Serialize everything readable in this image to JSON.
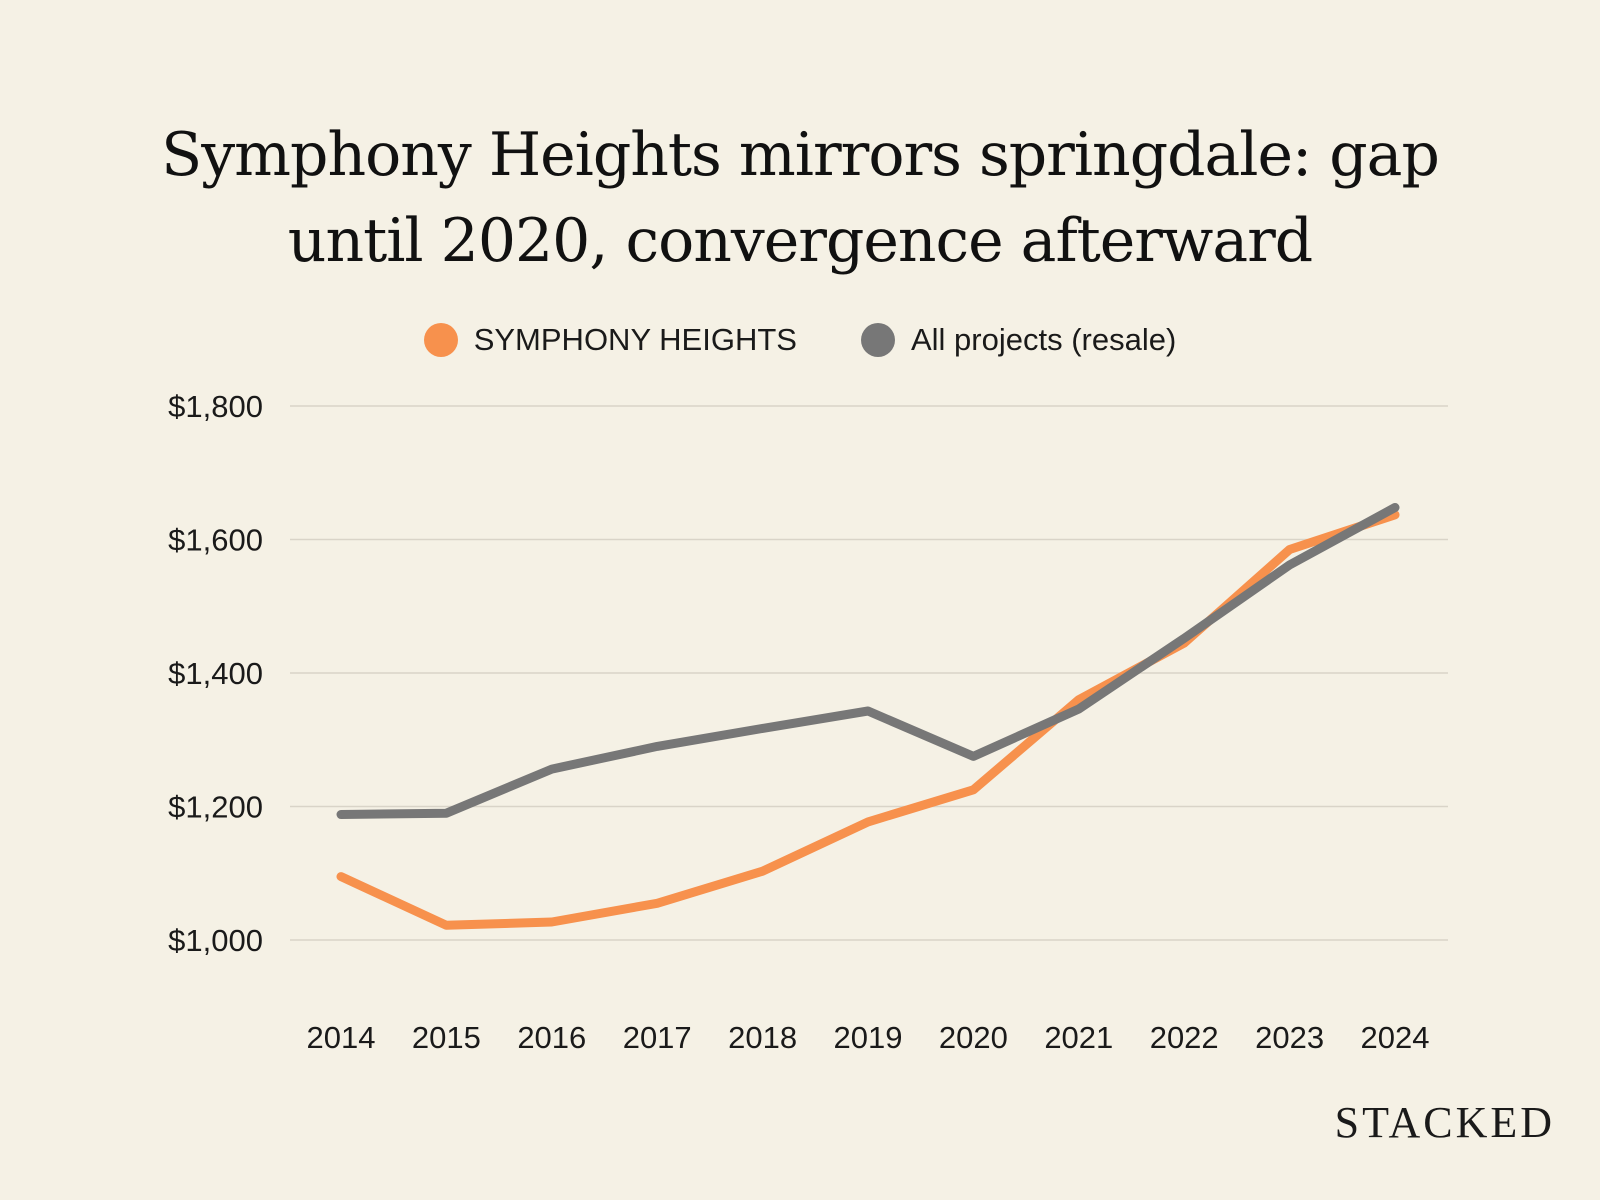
{
  "chart_data": {
    "type": "line",
    "title": "Symphony Heights mirrors springdale: gap until 2020, convergence afterward",
    "xlabel": "",
    "ylabel": "",
    "x": [
      "2014",
      "2015",
      "2016",
      "2017",
      "2018",
      "2019",
      "2020",
      "2021",
      "2022",
      "2023",
      "2024"
    ],
    "ylim": [
      1000,
      1800
    ],
    "yticks": [
      1000,
      1200,
      1400,
      1600,
      1800
    ],
    "ytick_labels": [
      "$1,000",
      "$1,200",
      "$1,400",
      "$1,600",
      "$1,800"
    ],
    "grid": true,
    "legend_position": "top-center",
    "series": [
      {
        "name": "SYMPHONY HEIGHTS",
        "color": "#f7914d",
        "values": [
          1095,
          1022,
          1027,
          1055,
          1103,
          1177,
          1225,
          1360,
          1445,
          1585,
          1637
        ]
      },
      {
        "name": "All projects (resale)",
        "color": "#777777",
        "values": [
          1188,
          1190,
          1256,
          1290,
          1317,
          1343,
          1275,
          1346,
          1452,
          1562,
          1648
        ]
      }
    ]
  },
  "brand": {
    "text": "STACKED"
  },
  "colors": {
    "background": "#f5f1e5",
    "gridline": "#d9d4c8"
  }
}
